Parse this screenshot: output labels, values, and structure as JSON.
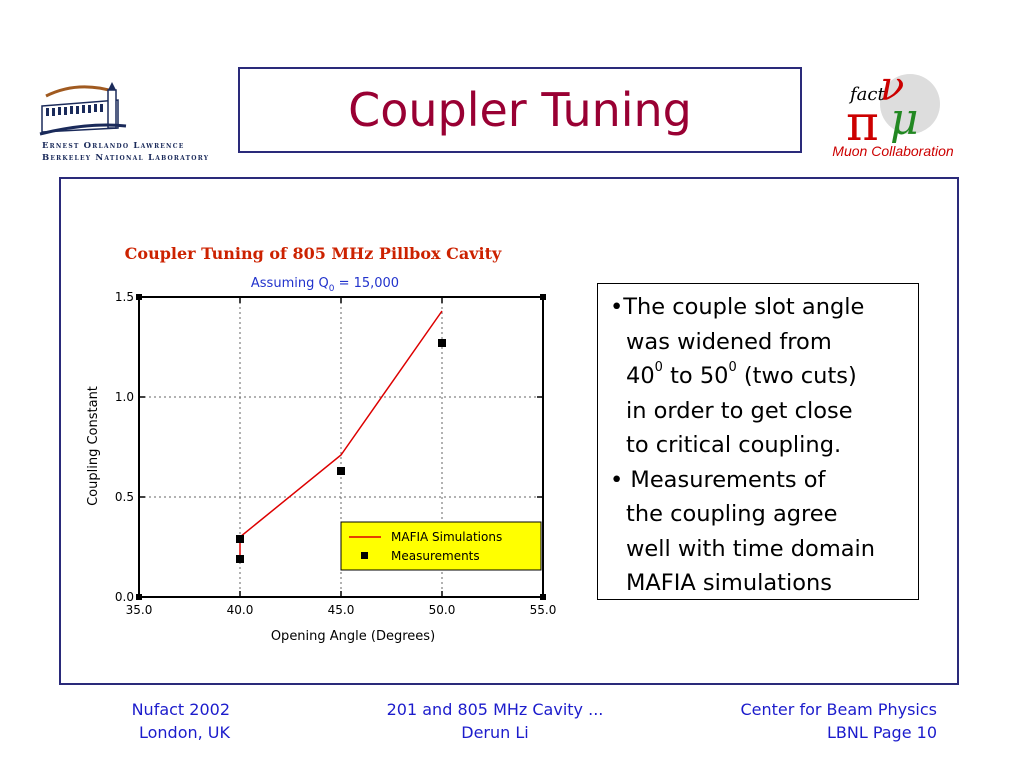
{
  "slide": {
    "title": "Coupler Tuning",
    "lbnl_name_line1": "Ernest Orlando Lawrence",
    "lbnl_name_line2": "Berkeley National Laboratory",
    "muon_logo_text": "fact",
    "muon_label": "Muon Collaboration"
  },
  "bullets": {
    "b1_l1": "•The couple slot angle",
    "b1_l2": "was widened from",
    "b1_l3_a": "40",
    "b1_l3_b": "0",
    "b1_l3_c": " to 50",
    "b1_l3_d": "0",
    "b1_l3_e": " (two cuts)",
    "b1_l4": "in order to get close",
    "b1_l5": "to critical coupling.",
    "b2_l1": "• Measurements of",
    "b2_l2": "the coupling agree",
    "b2_l3": "well with time domain",
    "b2_l4": "MAFIA simulations"
  },
  "footer": {
    "left_l1": "Nufact 2002",
    "left_l2": "London, UK",
    "center_l1": "201 and 805 MHz Cavity ...",
    "center_l2": "Derun Li",
    "right_l1": "Center for Beam Physics",
    "right_l2": "LBNL   Page 10"
  },
  "colors": {
    "title": "#990033",
    "footer": "#1c1ccc",
    "chart_title": "#cc2200",
    "chart_subtitle": "#2233cc",
    "line": "#dd0000",
    "legend_bg": "#ffff00"
  },
  "chart_data": {
    "type": "line",
    "title": "Coupler Tuning of 805 MHz Pillbox Cavity",
    "subtitle": "Assuming Q",
    "subtitle_sub": "0",
    "subtitle_end": " = 15,000",
    "xlabel": "Opening Angle (Degrees)",
    "ylabel": "Coupling Constant",
    "xlim": [
      35,
      55
    ],
    "ylim": [
      0,
      1.5
    ],
    "xticks": [
      "35.0",
      "40.0",
      "45.0",
      "50.0",
      "55.0"
    ],
    "yticks": [
      "0.0",
      "0.5",
      "1.0",
      "1.5"
    ],
    "grid": true,
    "legend_position": "bottom-right",
    "series": [
      {
        "name": "MAFIA Simulations",
        "style": "line",
        "x": [
          40,
          40,
          45,
          50
        ],
        "y": [
          0.19,
          0.3,
          0.71,
          1.43
        ]
      },
      {
        "name": "Measurements",
        "style": "marker",
        "x": [
          40,
          40,
          45,
          50
        ],
        "y": [
          0.29,
          0.19,
          0.63,
          1.27
        ]
      }
    ]
  }
}
